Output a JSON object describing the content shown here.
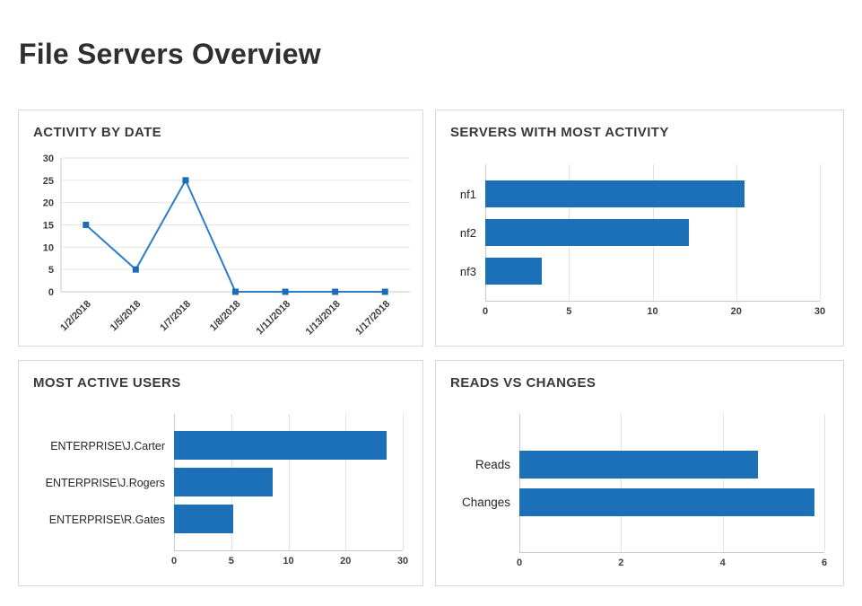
{
  "page": {
    "title": "File Servers Overview"
  },
  "colors": {
    "bar": "#1b70b8",
    "line": "#2e7dc7",
    "marker": "#1d6cb8",
    "grid": "#e4e4e4",
    "axis": "#c9c9c9",
    "panel_border": "#d8d8d8",
    "title_text": "#2f2f2f",
    "panel_title_text": "#3a3a3a",
    "tick_text": "#3c3c3c",
    "category_text": "#262626"
  },
  "chart_data": [
    {
      "id": "activity-by-date",
      "type": "line",
      "title": "ACTIVITY BY DATE",
      "x": [
        "1/2/2018",
        "1/5/2018",
        "1/7/2018",
        "1/8/2018",
        "1/11/2018",
        "1/13/2018",
        "1/17/2018"
      ],
      "values": [
        15,
        5,
        25,
        0,
        0,
        0,
        0
      ],
      "ylim": [
        0,
        30
      ],
      "yticks": [
        0,
        5,
        10,
        15,
        20,
        25,
        30
      ],
      "grid": "horizontal",
      "marker": "square",
      "legend": "none"
    },
    {
      "id": "servers-with-most-activity",
      "type": "bar",
      "orientation": "horizontal",
      "title": "SERVERS WITH MOST ACTIVITY",
      "categories": [
        "nf1",
        "nf2",
        "nf3"
      ],
      "values": [
        21,
        14.3,
        3.4
      ],
      "xticks": [
        0,
        5,
        10,
        20,
        30
      ],
      "tick_spacing": "even-nonlinear",
      "grid": "vertical",
      "legend": "none"
    },
    {
      "id": "most-active-users",
      "type": "bar",
      "orientation": "horizontal",
      "title": "MOST ACTIVE USERS",
      "categories": [
        "ENTERPRISE\\J.Carter",
        "ENTERPRISE\\J.Rogers",
        "ENTERPRISE\\R.Gates"
      ],
      "values": [
        27.1,
        8.6,
        5.2
      ],
      "xticks": [
        0,
        5,
        10,
        20,
        30
      ],
      "tick_spacing": "even-nonlinear",
      "grid": "vertical",
      "legend": "none"
    },
    {
      "id": "reads-vs-changes",
      "type": "bar",
      "orientation": "horizontal",
      "title": "READS VS CHANGES",
      "categories": [
        "Reads",
        "Changes"
      ],
      "values": [
        4.7,
        5.8
      ],
      "xticks": [
        0,
        2,
        4,
        6
      ],
      "tick_spacing": "linear",
      "grid": "vertical",
      "legend": "none"
    }
  ]
}
